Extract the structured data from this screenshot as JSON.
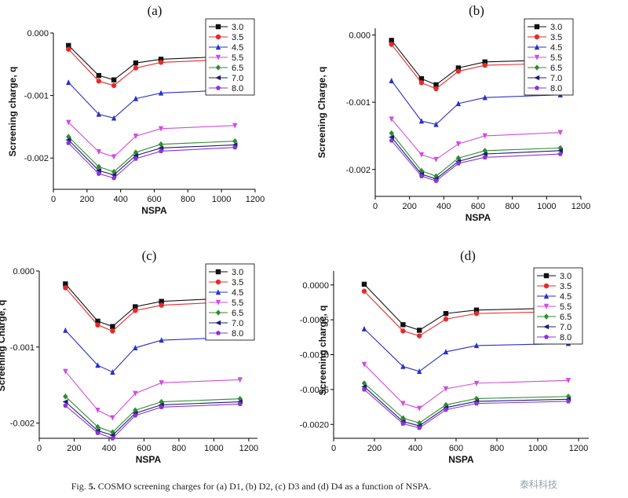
{
  "caption": {
    "prefix": "Fig. ",
    "number": "5.",
    "text": " COSMO screening charges for (a) D1, (b) D2, (c) D3 and (d) D4 as a function of NSPA."
  },
  "watermark": "泰科科技",
  "colors": {
    "3.0": "#111111",
    "3.5": "#e8292b",
    "4.5": "#2a30c9",
    "5.5": "#d24ce0",
    "6.5": "#2f8b2f",
    "7.0": "#1e1e6e",
    "8.0": "#8a35d8"
  },
  "chart_data": [
    {
      "type": "line",
      "panel_label": "(a)",
      "xlabel": "NSPA",
      "ylabel": "Screening charge, q",
      "xlim": [
        0,
        1200
      ],
      "ylim": [
        -0.0025,
        0.0
      ],
      "xticks": [
        0,
        200,
        400,
        600,
        800,
        1000,
        1200
      ],
      "yticks": [
        0.0,
        -0.001,
        -0.002
      ],
      "ytick_labels": [
        "0.000",
        "-0.001",
        "-0.002"
      ],
      "x": [
        90,
        270,
        360,
        490,
        640,
        1080
      ],
      "legend": "top-right",
      "series": [
        {
          "name": "3.0",
          "values": [
            -0.0002,
            -0.00068,
            -0.00075,
            -0.00048,
            -0.00042,
            -0.00037
          ]
        },
        {
          "name": "3.5",
          "values": [
            -0.00026,
            -0.00077,
            -0.00084,
            -0.00056,
            -0.00047,
            -0.00042
          ]
        },
        {
          "name": "4.5",
          "values": [
            -0.00079,
            -0.0013,
            -0.00136,
            -0.00105,
            -0.00096,
            -0.00091
          ]
        },
        {
          "name": "5.5",
          "values": [
            -0.00143,
            -0.0019,
            -0.00198,
            -0.00165,
            -0.00153,
            -0.00148
          ]
        },
        {
          "name": "6.5",
          "values": [
            -0.00166,
            -0.00214,
            -0.00222,
            -0.00191,
            -0.00178,
            -0.00173
          ]
        },
        {
          "name": "7.0",
          "values": [
            -0.00171,
            -0.0022,
            -0.00227,
            -0.00196,
            -0.00184,
            -0.00179
          ]
        },
        {
          "name": "8.0",
          "values": [
            -0.00176,
            -0.00225,
            -0.00232,
            -0.00201,
            -0.00189,
            -0.00183
          ]
        }
      ]
    },
    {
      "type": "line",
      "panel_label": "(b)",
      "xlabel": "NSPA",
      "ylabel": "Screening Charge, q",
      "xlim": [
        0,
        1200
      ],
      "ylim": [
        -0.0024,
        0.0001
      ],
      "xticks": [
        0,
        200,
        400,
        600,
        800,
        1000,
        1200
      ],
      "yticks": [
        0.0,
        -0.001,
        -0.002
      ],
      "ytick_labels": [
        "0.000",
        "-0.001",
        "-0.002"
      ],
      "x": [
        95,
        270,
        355,
        485,
        640,
        1080
      ],
      "legend": "top-right",
      "series": [
        {
          "name": "3.0",
          "values": [
            -8e-05,
            -0.00065,
            -0.00074,
            -0.00049,
            -0.0004,
            -0.00037
          ]
        },
        {
          "name": "3.5",
          "values": [
            -0.00014,
            -0.00071,
            -0.0008,
            -0.00054,
            -0.00045,
            -0.00042
          ]
        },
        {
          "name": "4.5",
          "values": [
            -0.00068,
            -0.00128,
            -0.00133,
            -0.00102,
            -0.00093,
            -0.00089
          ]
        },
        {
          "name": "5.5",
          "values": [
            -0.00125,
            -0.00178,
            -0.00185,
            -0.00162,
            -0.0015,
            -0.00145
          ]
        },
        {
          "name": "6.5",
          "values": [
            -0.00146,
            -0.00202,
            -0.0021,
            -0.00183,
            -0.00172,
            -0.00168
          ]
        },
        {
          "name": "7.0",
          "values": [
            -0.00152,
            -0.00207,
            -0.00214,
            -0.00188,
            -0.00177,
            -0.00172
          ]
        },
        {
          "name": "8.0",
          "values": [
            -0.00157,
            -0.0021,
            -0.00217,
            -0.00191,
            -0.00182,
            -0.00177
          ]
        }
      ]
    },
    {
      "type": "line",
      "panel_label": "(c)",
      "xlabel": "NSPA",
      "ylabel": "Screening Charge, q",
      "xlim": [
        0,
        1250
      ],
      "ylim": [
        -0.0022,
        0.0
      ],
      "xticks": [
        0,
        200,
        400,
        600,
        800,
        1000,
        1200
      ],
      "yticks": [
        0.0,
        -0.001,
        -0.002
      ],
      "ytick_labels": [
        "0.000",
        "-0.001",
        "-0.002"
      ],
      "x": [
        150,
        335,
        420,
        550,
        700,
        1150
      ],
      "legend": "top-right",
      "series": [
        {
          "name": "3.0",
          "values": [
            -0.00017,
            -0.00066,
            -0.00073,
            -0.00047,
            -0.0004,
            -0.00035
          ]
        },
        {
          "name": "3.5",
          "values": [
            -0.00022,
            -0.00071,
            -0.00079,
            -0.00052,
            -0.00045,
            -0.0004
          ]
        },
        {
          "name": "4.5",
          "values": [
            -0.00078,
            -0.00124,
            -0.00133,
            -0.00101,
            -0.00091,
            -0.00087
          ]
        },
        {
          "name": "5.5",
          "values": [
            -0.00132,
            -0.00183,
            -0.00193,
            -0.00161,
            -0.00147,
            -0.00143
          ]
        },
        {
          "name": "6.5",
          "values": [
            -0.00165,
            -0.00205,
            -0.00212,
            -0.00183,
            -0.00172,
            -0.00168
          ]
        },
        {
          "name": "7.0",
          "values": [
            -0.00172,
            -0.0021,
            -0.00216,
            -0.00187,
            -0.00176,
            -0.00172
          ]
        },
        {
          "name": "8.0",
          "values": [
            -0.00177,
            -0.00213,
            -0.0022,
            -0.0019,
            -0.00179,
            -0.00175
          ]
        }
      ]
    },
    {
      "type": "line",
      "panel_label": "(d)",
      "xlabel": "NSPA",
      "ylabel": "Screening charge, q",
      "xlim": [
        0,
        1250
      ],
      "ylim": [
        -0.0022,
        0.0002
      ],
      "xticks": [
        0,
        200,
        400,
        600,
        800,
        1000,
        1200
      ],
      "yticks": [
        0.0,
        -0.0005,
        -0.001,
        -0.0015,
        -0.002
      ],
      "ytick_labels": [
        "0.0000",
        "-0.0005",
        "-0.0010",
        "-0.0015",
        "-0.0020"
      ],
      "x": [
        150,
        340,
        420,
        550,
        700,
        1150
      ],
      "legend": "top-right",
      "series": [
        {
          "name": "3.0",
          "values": [
            1e-05,
            -0.00057,
            -0.00065,
            -0.00041,
            -0.00036,
            -0.00033
          ]
        },
        {
          "name": "3.5",
          "values": [
            -9e-05,
            -0.00066,
            -0.00073,
            -0.00049,
            -0.00041,
            -0.00038
          ]
        },
        {
          "name": "4.5",
          "values": [
            -0.00063,
            -0.00117,
            -0.00124,
            -0.00096,
            -0.00087,
            -0.00084
          ]
        },
        {
          "name": "5.5",
          "values": [
            -0.00114,
            -0.0017,
            -0.00177,
            -0.00149,
            -0.00141,
            -0.00137
          ]
        },
        {
          "name": "6.5",
          "values": [
            -0.00141,
            -0.00191,
            -0.00198,
            -0.00172,
            -0.00163,
            -0.0016
          ]
        },
        {
          "name": "7.0",
          "values": [
            -0.00146,
            -0.00196,
            -0.00202,
            -0.00176,
            -0.00167,
            -0.00164
          ]
        },
        {
          "name": "8.0",
          "values": [
            -0.0015,
            -0.00199,
            -0.00205,
            -0.00179,
            -0.0017,
            -0.00167
          ]
        }
      ]
    }
  ]
}
